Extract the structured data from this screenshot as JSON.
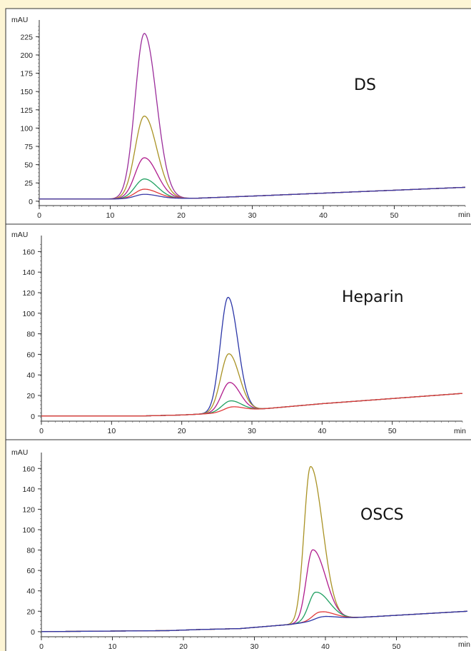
{
  "chart_data": [
    {
      "type": "line",
      "annotation": "DS",
      "ylabel": "mAU",
      "xlabel": "min",
      "xlim": [
        0,
        60
      ],
      "ylim": [
        -6,
        240
      ],
      "xticks": [
        0,
        10,
        20,
        30,
        40,
        50
      ],
      "yticks": [
        0,
        25,
        50,
        75,
        100,
        125,
        150,
        175,
        200,
        225
      ],
      "baseline": [
        [
          0,
          3
        ],
        [
          10,
          3
        ],
        [
          22,
          4
        ],
        [
          30,
          7
        ],
        [
          40,
          11
        ],
        [
          50,
          15
        ],
        [
          60,
          19
        ]
      ],
      "series": [
        {
          "color": "#9b2d9b",
          "peak_x": 14.8,
          "height": 226,
          "sigma_left": 1.3,
          "sigma_right": 1.7
        },
        {
          "color": "#a99224",
          "peak_x": 14.8,
          "height": 113,
          "sigma_left": 1.3,
          "sigma_right": 1.75
        },
        {
          "color": "#b01b8c",
          "peak_x": 14.8,
          "height": 56,
          "sigma_left": 1.3,
          "sigma_right": 1.8
        },
        {
          "color": "#1fa060",
          "peak_x": 14.8,
          "height": 27,
          "sigma_left": 1.3,
          "sigma_right": 1.8
        },
        {
          "color": "#e03a3a",
          "peak_x": 14.8,
          "height": 13,
          "sigma_left": 1.3,
          "sigma_right": 1.9
        },
        {
          "color": "#3a3aa8",
          "peak_x": 14.8,
          "height": 6,
          "sigma_left": 1.3,
          "sigma_right": 1.9
        }
      ]
    },
    {
      "type": "line",
      "annotation": "Heparin",
      "ylabel": "mAU",
      "xlabel": "min",
      "xlim": [
        0,
        60
      ],
      "ylim": [
        -5,
        170
      ],
      "xticks": [
        0,
        10,
        20,
        30,
        40,
        50
      ],
      "yticks": [
        0,
        20,
        40,
        60,
        80,
        100,
        120,
        140,
        160
      ],
      "baseline": [
        [
          0,
          0
        ],
        [
          14,
          0
        ],
        [
          20,
          1
        ],
        [
          26,
          3
        ],
        [
          30,
          6
        ],
        [
          40,
          12
        ],
        [
          50,
          17
        ],
        [
          60,
          22
        ]
      ],
      "series": [
        {
          "color": "#2b36a8",
          "peak_x": 26.6,
          "height": 112,
          "sigma_left": 1.1,
          "sigma_right": 1.4
        },
        {
          "color": "#a99224",
          "peak_x": 26.7,
          "height": 57,
          "sigma_left": 1.15,
          "sigma_right": 1.5
        },
        {
          "color": "#b01b8c",
          "peak_x": 26.8,
          "height": 29,
          "sigma_left": 1.15,
          "sigma_right": 1.5
        },
        {
          "color": "#1fa060",
          "peak_x": 26.9,
          "height": 11,
          "sigma_left": 1.2,
          "sigma_right": 1.6
        },
        {
          "color": "#e03a3a",
          "peak_x": 27.1,
          "height": 5,
          "sigma_left": 1.2,
          "sigma_right": 1.6
        }
      ]
    },
    {
      "type": "line",
      "annotation": "OSCS",
      "ylabel": "mAU",
      "xlabel": "min",
      "xlim": [
        0,
        60
      ],
      "ylim": [
        -5,
        170
      ],
      "xticks": [
        0,
        10,
        20,
        30,
        40,
        50
      ],
      "yticks": [
        0,
        20,
        40,
        60,
        80,
        100,
        120,
        140,
        160
      ],
      "baseline": [
        [
          0,
          0
        ],
        [
          18,
          1
        ],
        [
          22,
          2
        ],
        [
          28,
          3
        ],
        [
          35,
          7
        ],
        [
          40,
          12
        ],
        [
          50,
          16
        ],
        [
          60,
          20
        ]
      ],
      "series": [
        {
          "color": "#a99224",
          "peak_x": 37.9,
          "height": 152,
          "sigma_left": 0.9,
          "sigma_right": 1.7
        },
        {
          "color": "#b01b8c",
          "peak_x": 38.2,
          "height": 70,
          "sigma_left": 0.9,
          "sigma_right": 1.8
        },
        {
          "color": "#1fa060",
          "peak_x": 38.6,
          "height": 28,
          "sigma_left": 0.95,
          "sigma_right": 1.9
        },
        {
          "color": "#e03a3a",
          "peak_x": 39.2,
          "height": 8,
          "sigma_left": 1.0,
          "sigma_right": 2.0
        },
        {
          "color": "#2b36a8",
          "peak_x": 39.5,
          "height": 3,
          "sigma_left": 1.0,
          "sigma_right": 2.0
        }
      ]
    }
  ]
}
